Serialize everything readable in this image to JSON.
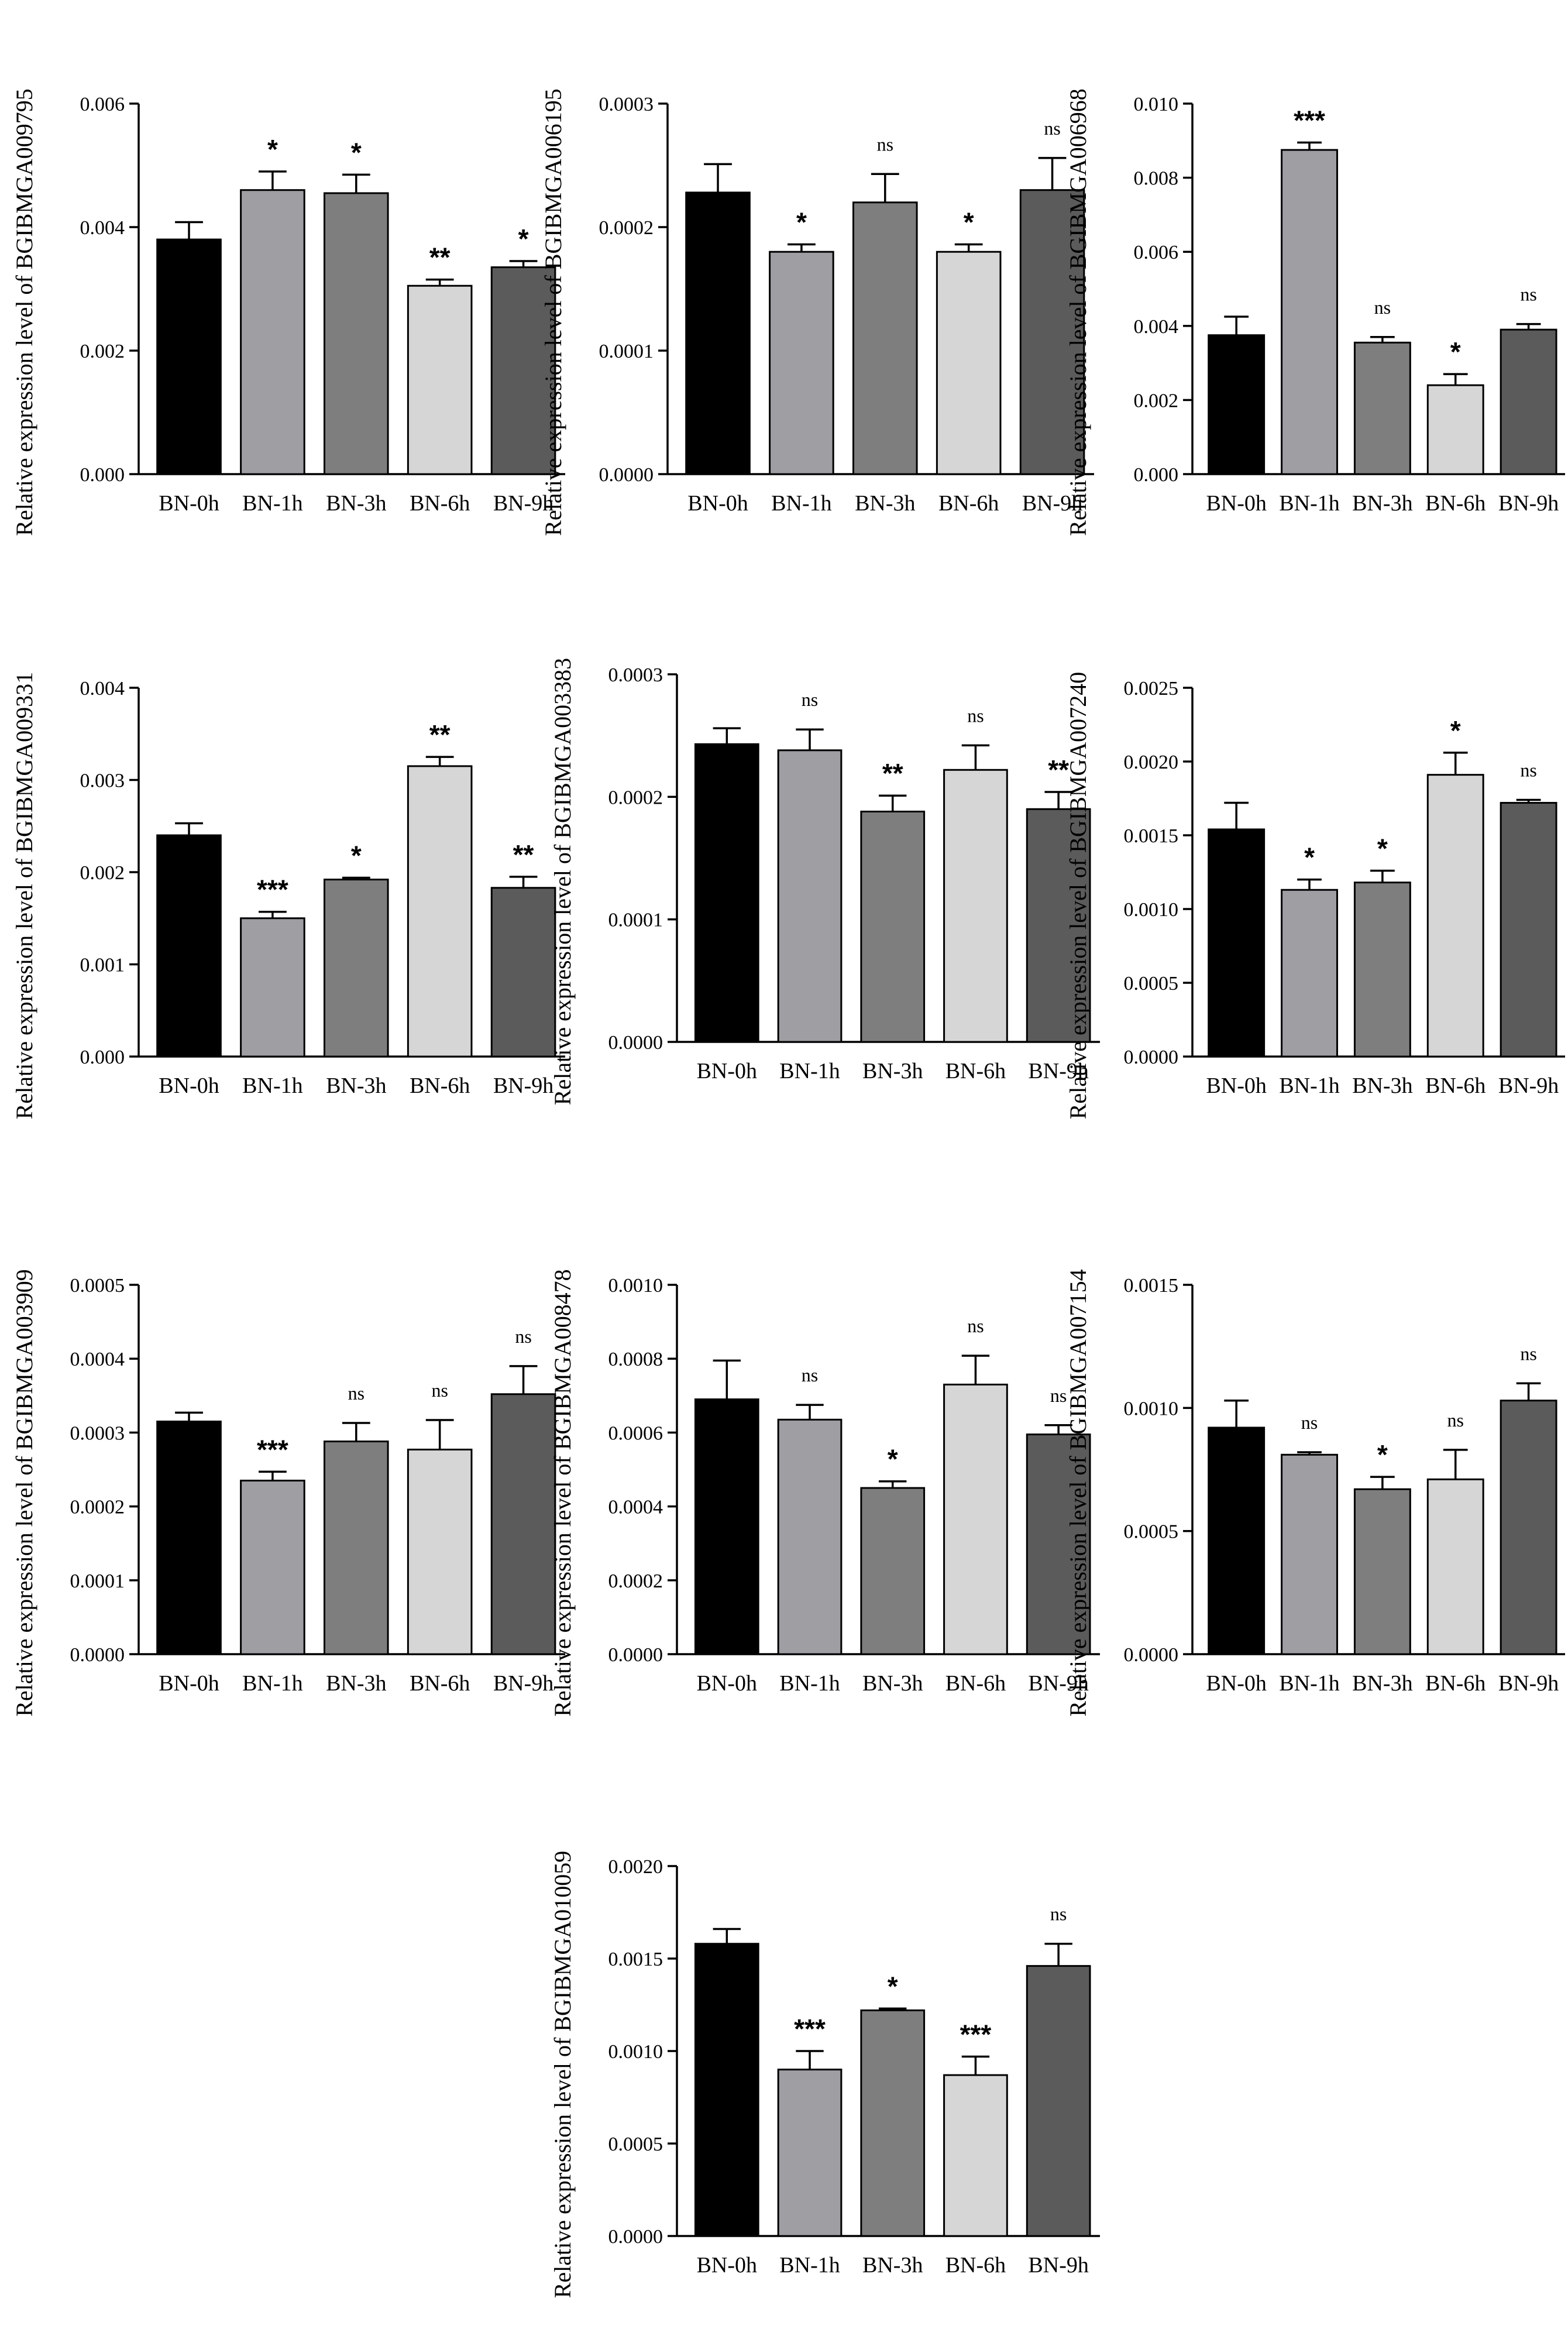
{
  "figure": {
    "ylabel_prefix": "Relative expression level of "
  },
  "chart_data": [
    {
      "type": "bar",
      "gene": "BGIBMGA009795",
      "ylabel": "Relative expression level of BGIBMGA009795",
      "categories": [
        "BN-0h",
        "BN-1h",
        "BN-3h",
        "BN-6h",
        "BN-9h"
      ],
      "values": [
        0.0038,
        0.0046,
        0.00455,
        0.00305,
        0.00335
      ],
      "errors": [
        0.00028,
        0.0003,
        0.0003,
        0.0001,
        0.0001
      ],
      "significance": [
        "",
        "*",
        "*",
        "**",
        "*"
      ],
      "ylim": [
        0,
        0.006
      ],
      "yticks": [
        "0.000",
        "0.002",
        "0.004",
        "0.006"
      ]
    },
    {
      "type": "bar",
      "gene": "BGIBMGA006195",
      "ylabel": "Relative expression level of BGIBMGA006195",
      "categories": [
        "BN-0h",
        "BN-1h",
        "BN-3h",
        "BN-6h",
        "BN-9h"
      ],
      "values": [
        0.000228,
        0.00018,
        0.00022,
        0.00018,
        0.00023
      ],
      "errors": [
        2.3e-05,
        6e-06,
        2.3e-05,
        6e-06,
        2.6e-05
      ],
      "significance": [
        "",
        "*",
        "ns",
        "*",
        "ns"
      ],
      "ylim": [
        0,
        0.0003
      ],
      "yticks": [
        "0.0000",
        "0.0001",
        "0.0002",
        "0.0003"
      ]
    },
    {
      "type": "bar",
      "gene": "BGIBMGA006968",
      "ylabel": "Relative expression level of BGIBMGA006968",
      "categories": [
        "BN-0h",
        "BN-1h",
        "BN-3h",
        "BN-6h",
        "BN-9h"
      ],
      "values": [
        0.00375,
        0.00875,
        0.00355,
        0.0024,
        0.0039
      ],
      "errors": [
        0.0005,
        0.0002,
        0.00015,
        0.0003,
        0.00015
      ],
      "significance": [
        "",
        "***",
        "ns",
        "*",
        "ns"
      ],
      "ylim": [
        0,
        0.01
      ],
      "yticks": [
        "0.000",
        "0.002",
        "0.004",
        "0.006",
        "0.008",
        "0.010"
      ]
    },
    {
      "type": "bar",
      "gene": "BGIBMGA009331",
      "ylabel": "Relative expression level of BGIBMGA009331",
      "categories": [
        "BN-0h",
        "BN-1h",
        "BN-3h",
        "BN-6h",
        "BN-9h"
      ],
      "values": [
        0.0024,
        0.0015,
        0.00192,
        0.00315,
        0.00183
      ],
      "errors": [
        0.00013,
        7e-05,
        2e-05,
        0.0001,
        0.00012
      ],
      "significance": [
        "",
        "***",
        "*",
        "**",
        "**"
      ],
      "ylim": [
        0,
        0.004
      ],
      "yticks": [
        "0.000",
        "0.001",
        "0.002",
        "0.003",
        "0.004"
      ]
    },
    {
      "type": "bar",
      "gene": "BGIBMGA003383",
      "ylabel": "Relative expression level of BGIBMGA003383",
      "categories": [
        "BN-0h",
        "BN-1h",
        "BN-3h",
        "BN-6h",
        "BN-9h"
      ],
      "values": [
        0.000243,
        0.000238,
        0.000188,
        0.000222,
        0.00019
      ],
      "errors": [
        1.3e-05,
        1.7e-05,
        1.3e-05,
        2e-05,
        1.4e-05
      ],
      "significance": [
        "",
        "ns",
        "**",
        "ns",
        "**"
      ],
      "ylim": [
        0,
        0.0003
      ],
      "yticks": [
        "0.0000",
        "0.0001",
        "0.0002",
        "0.0003"
      ]
    },
    {
      "type": "bar",
      "gene": "BGIBMGA007240",
      "ylabel": "Relative expression level of BGIBMGA007240",
      "categories": [
        "BN-0h",
        "BN-1h",
        "BN-3h",
        "BN-6h",
        "BN-9h"
      ],
      "values": [
        0.00154,
        0.00113,
        0.00118,
        0.00191,
        0.00172
      ],
      "errors": [
        0.00018,
        7e-05,
        8e-05,
        0.00015,
        2e-05
      ],
      "significance": [
        "",
        "*",
        "*",
        "*",
        "ns"
      ],
      "ylim": [
        0,
        0.0025
      ],
      "yticks": [
        "0.0000",
        "0.0005",
        "0.0010",
        "0.0015",
        "0.0020",
        "0.0025"
      ]
    },
    {
      "type": "bar",
      "gene": "BGIBMGA003909",
      "ylabel": "Relative expression level of BGIBMGA003909",
      "categories": [
        "BN-0h",
        "BN-1h",
        "BN-3h",
        "BN-6h",
        "BN-9h"
      ],
      "values": [
        0.000315,
        0.000235,
        0.000288,
        0.000277,
        0.000352
      ],
      "errors": [
        1.2e-05,
        1.2e-05,
        2.5e-05,
        4e-05,
        3.8e-05
      ],
      "significance": [
        "",
        "***",
        "ns",
        "ns",
        "ns"
      ],
      "ylim": [
        0,
        0.0005
      ],
      "yticks": [
        "0.0000",
        "0.0001",
        "0.0002",
        "0.0003",
        "0.0004",
        "0.0005"
      ]
    },
    {
      "type": "bar",
      "gene": "BGIBMGA008478",
      "ylabel": "Relative expression level of BGIBMGA008478",
      "categories": [
        "BN-0h",
        "BN-1h",
        "BN-3h",
        "BN-6h",
        "BN-9h"
      ],
      "values": [
        0.00069,
        0.000635,
        0.00045,
        0.00073,
        0.000595
      ],
      "errors": [
        0.000105,
        4e-05,
        1.8e-05,
        7.8e-05,
        2.5e-05
      ],
      "significance": [
        "",
        "ns",
        "*",
        "ns",
        "ns"
      ],
      "ylim": [
        0,
        0.001
      ],
      "yticks": [
        "0.0000",
        "0.0002",
        "0.0004",
        "0.0006",
        "0.0008",
        "0.0010"
      ]
    },
    {
      "type": "bar",
      "gene": "BGIBMGA007154",
      "ylabel": "Relative expression level of BGIBMGA007154",
      "categories": [
        "BN-0h",
        "BN-1h",
        "BN-3h",
        "BN-6h",
        "BN-9h"
      ],
      "values": [
        0.00092,
        0.00081,
        0.00067,
        0.00071,
        0.00103
      ],
      "errors": [
        0.00011,
        1e-05,
        5e-05,
        0.00012,
        7e-05
      ],
      "significance": [
        "",
        "ns",
        "*",
        "ns",
        "ns"
      ],
      "ylim": [
        0,
        0.0015
      ],
      "yticks": [
        "0.0000",
        "0.0005",
        "0.0010",
        "0.0015"
      ]
    },
    {
      "type": "bar",
      "gene": "BGIBMGA010059",
      "ylabel": "Relative expression level of BGIBMGA010059",
      "categories": [
        "BN-0h",
        "BN-1h",
        "BN-3h",
        "BN-6h",
        "BN-9h"
      ],
      "values": [
        0.00158,
        0.0009,
        0.00122,
        0.00087,
        0.00146
      ],
      "errors": [
        8e-05,
        0.0001,
        1e-05,
        0.0001,
        0.00012
      ],
      "significance": [
        "",
        "***",
        "*",
        "***",
        "ns"
      ],
      "ylim": [
        0,
        0.002
      ],
      "yticks": [
        "0.0000",
        "0.0005",
        "0.0010",
        "0.0015",
        "0.0020"
      ]
    }
  ],
  "bar_colors": [
    "#000000",
    "#9e9ea3",
    "#7e7e7e",
    "#d6d6d6",
    "#5b5b5b"
  ],
  "axis_color": "#000000"
}
